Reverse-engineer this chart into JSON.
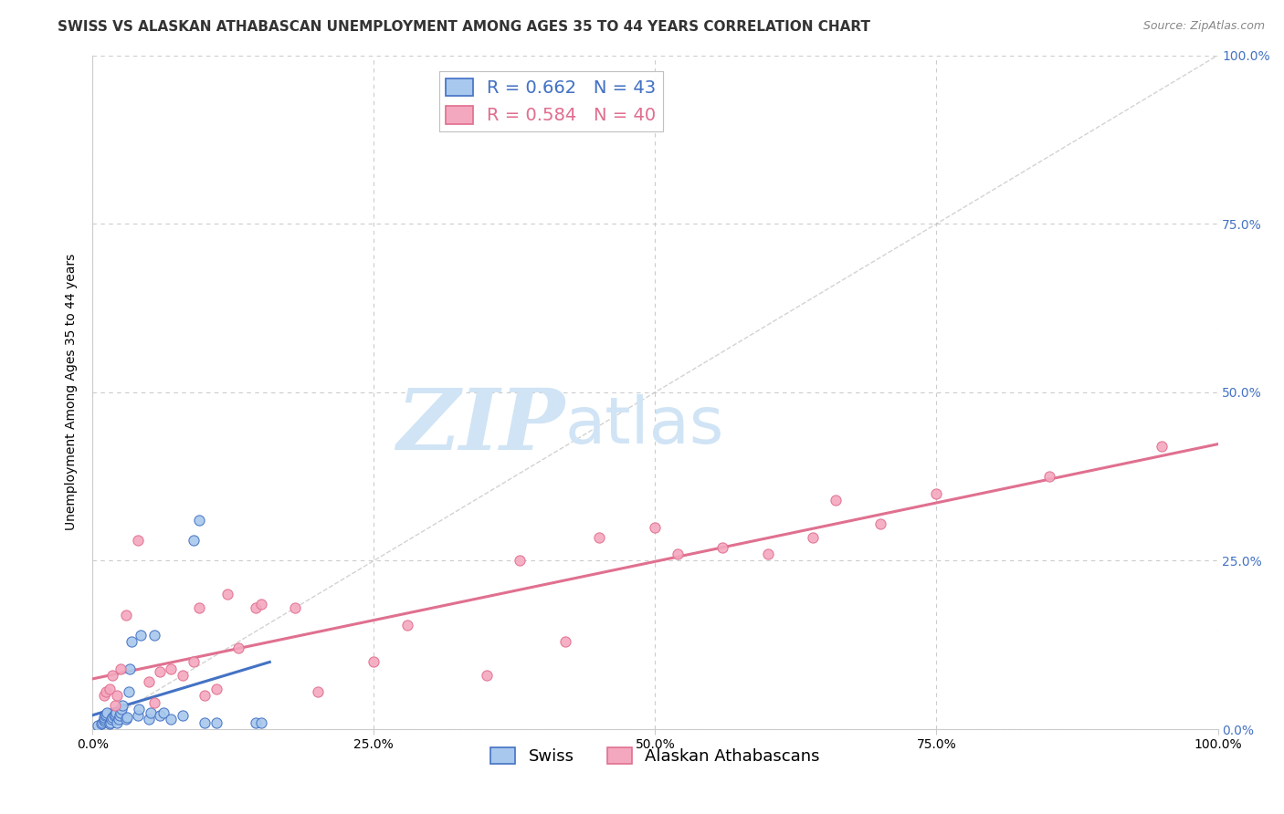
{
  "title": "SWISS VS ALASKAN ATHABASCAN UNEMPLOYMENT AMONG AGES 35 TO 44 YEARS CORRELATION CHART",
  "source": "Source: ZipAtlas.com",
  "ylabel": "Unemployment Among Ages 35 to 44 years",
  "ytick_labels": [
    "0.0%",
    "25.0%",
    "50.0%",
    "75.0%",
    "100.0%"
  ],
  "ytick_values": [
    0,
    0.25,
    0.5,
    0.75,
    1.0
  ],
  "xtick_values": [
    0,
    0.25,
    0.5,
    0.75,
    1.0
  ],
  "xtick_labels": [
    "0.0%",
    "25.0%",
    "50.0%",
    "75.0%",
    "100.0%"
  ],
  "xlim": [
    0,
    1.0
  ],
  "ylim": [
    0,
    1.0
  ],
  "swiss_R": 0.662,
  "swiss_N": 43,
  "athabascan_R": 0.584,
  "athabascan_N": 40,
  "swiss_color": "#a8c8ed",
  "athabascan_color": "#f4a8bf",
  "swiss_line_color": "#4472c4",
  "athabascan_line_color": "#e07090",
  "diagonal_color": "#c0c0c0",
  "background_color": "#ffffff",
  "watermark_zip": "ZIP",
  "watermark_atlas": "atlas",
  "watermark_color": "#d0e4f5",
  "legend_swiss_text": "Swiss",
  "legend_athabascan_text": "Alaskan Athabascans",
  "swiss_x": [
    0.005,
    0.008,
    0.009,
    0.01,
    0.01,
    0.01,
    0.011,
    0.012,
    0.013,
    0.015,
    0.016,
    0.017,
    0.018,
    0.019,
    0.02,
    0.021,
    0.022,
    0.023,
    0.024,
    0.025,
    0.026,
    0.027,
    0.03,
    0.031,
    0.032,
    0.033,
    0.035,
    0.04,
    0.041,
    0.043,
    0.05,
    0.052,
    0.055,
    0.06,
    0.063,
    0.07,
    0.08,
    0.09,
    0.095,
    0.1,
    0.11,
    0.145,
    0.15
  ],
  "swiss_y": [
    0.005,
    0.008,
    0.01,
    0.012,
    0.015,
    0.018,
    0.02,
    0.022,
    0.025,
    0.008,
    0.01,
    0.015,
    0.018,
    0.02,
    0.022,
    0.025,
    0.01,
    0.015,
    0.02,
    0.025,
    0.03,
    0.035,
    0.015,
    0.018,
    0.055,
    0.09,
    0.13,
    0.02,
    0.03,
    0.14,
    0.015,
    0.025,
    0.14,
    0.02,
    0.025,
    0.015,
    0.02,
    0.28,
    0.31,
    0.01,
    0.01,
    0.01,
    0.01
  ],
  "athabascan_x": [
    0.01,
    0.012,
    0.015,
    0.018,
    0.02,
    0.022,
    0.025,
    0.03,
    0.04,
    0.05,
    0.055,
    0.06,
    0.07,
    0.08,
    0.09,
    0.095,
    0.1,
    0.11,
    0.12,
    0.13,
    0.145,
    0.15,
    0.18,
    0.2,
    0.25,
    0.28,
    0.35,
    0.38,
    0.42,
    0.45,
    0.5,
    0.52,
    0.56,
    0.6,
    0.64,
    0.66,
    0.7,
    0.75,
    0.85,
    0.95
  ],
  "athabascan_y": [
    0.05,
    0.055,
    0.06,
    0.08,
    0.035,
    0.05,
    0.09,
    0.17,
    0.28,
    0.07,
    0.04,
    0.085,
    0.09,
    0.08,
    0.1,
    0.18,
    0.05,
    0.06,
    0.2,
    0.12,
    0.18,
    0.185,
    0.18,
    0.055,
    0.1,
    0.155,
    0.08,
    0.25,
    0.13,
    0.285,
    0.3,
    0.26,
    0.27,
    0.26,
    0.285,
    0.34,
    0.305,
    0.35,
    0.375,
    0.42
  ],
  "title_fontsize": 11,
  "axis_label_fontsize": 10,
  "tick_fontsize": 10,
  "legend_fontsize": 13,
  "r_legend_fontsize": 14
}
